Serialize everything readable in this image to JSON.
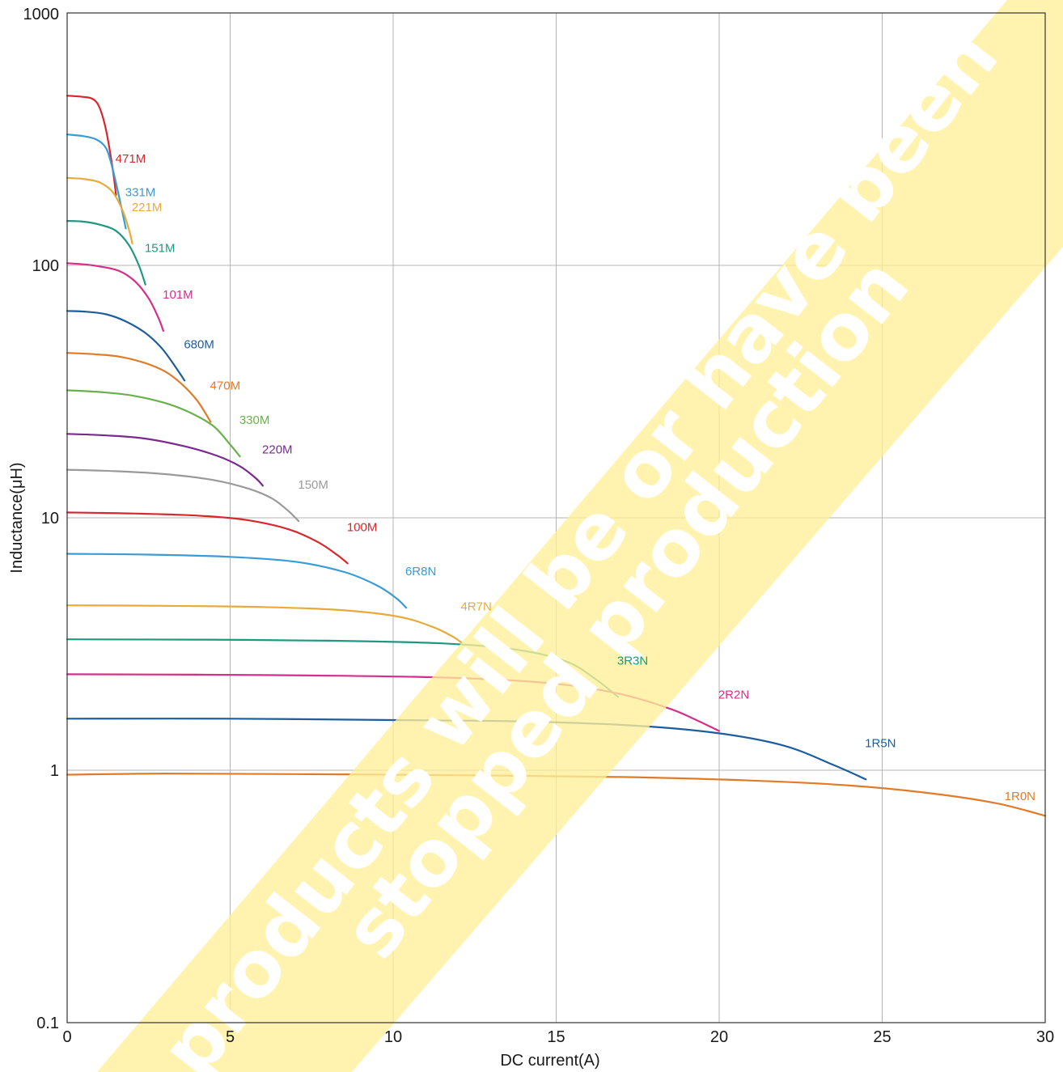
{
  "chart_data": {
    "type": "line",
    "title": "",
    "xlabel": "DC current(A)",
    "ylabel": "Inductance(μH)",
    "xlim": [
      0,
      30
    ],
    "ylim": [
      0.1,
      1000
    ],
    "yscale": "log",
    "grid": true,
    "x_ticks": [
      "0",
      "5",
      "10",
      "15",
      "20",
      "25",
      "30"
    ],
    "y_ticks": [
      "0.1",
      "1",
      "10",
      "100",
      "1000"
    ],
    "watermark": [
      "products will be or have been",
      "stopped production"
    ],
    "colors": {
      "watermark": "#fff099",
      "grid": "#b3b3b3",
      "axis": "#333333"
    },
    "series": [
      {
        "name": "471M",
        "color": "#d7272c",
        "x": [
          0,
          0.5,
          0.8,
          1.0,
          1.2,
          1.4,
          1.5
        ],
        "y": [
          470,
          465,
          455,
          420,
          340,
          240,
          190
        ]
      },
      {
        "name": "331M",
        "color": "#3a9bd5",
        "x": [
          0,
          0.5,
          0.9,
          1.2,
          1.4,
          1.6,
          1.8
        ],
        "y": [
          330,
          325,
          315,
          290,
          240,
          185,
          140
        ]
      },
      {
        "name": "221M",
        "color": "#e8ab3a",
        "x": [
          0,
          0.5,
          1.0,
          1.4,
          1.7,
          1.9,
          2.0
        ],
        "y": [
          222,
          220,
          213,
          195,
          165,
          138,
          122
        ]
      },
      {
        "name": "151M",
        "color": "#1f9882",
        "x": [
          0,
          0.5,
          1.0,
          1.5,
          1.9,
          2.2,
          2.4
        ],
        "y": [
          150,
          149,
          145,
          137,
          120,
          100,
          84
        ]
      },
      {
        "name": "101M",
        "color": "#d42f8c",
        "x": [
          0,
          0.5,
          1.0,
          1.6,
          2.1,
          2.5,
          2.8,
          2.95
        ],
        "y": [
          102,
          101,
          99,
          95,
          86,
          74,
          62,
          55
        ]
      },
      {
        "name": "680M",
        "color": "#1d5d9e",
        "x": [
          0,
          0.6,
          1.2,
          1.8,
          2.4,
          2.9,
          3.3,
          3.6
        ],
        "y": [
          66,
          65.5,
          64,
          60,
          54,
          47,
          40,
          35
        ]
      },
      {
        "name": "470M",
        "color": "#e07b2a",
        "x": [
          0,
          0.8,
          1.6,
          2.4,
          3.0,
          3.5,
          4.0,
          4.4
        ],
        "y": [
          45,
          44.5,
          43.5,
          41,
          38,
          34,
          29,
          24
        ]
      },
      {
        "name": "330M",
        "color": "#6ab04c",
        "x": [
          0,
          1.0,
          2.0,
          3.0,
          3.8,
          4.5,
          5.0,
          5.3
        ],
        "y": [
          32,
          31.5,
          30.5,
          28.5,
          26,
          23,
          19.5,
          17.5
        ]
      },
      {
        "name": "220M",
        "color": "#7a2a8f",
        "x": [
          0,
          1.2,
          2.4,
          3.6,
          4.6,
          5.3,
          5.8,
          6.0
        ],
        "y": [
          21.5,
          21.2,
          20.6,
          19.2,
          17.6,
          16.0,
          14.3,
          13.4
        ]
      },
      {
        "name": "150M",
        "color": "#9a9a9a",
        "x": [
          0,
          1.5,
          3.0,
          4.5,
          5.6,
          6.3,
          6.8,
          7.1
        ],
        "y": [
          15.5,
          15.3,
          14.9,
          14.1,
          13.0,
          11.9,
          10.6,
          9.7
        ]
      },
      {
        "name": "100M",
        "color": "#d7272c",
        "x": [
          0,
          2.0,
          4.0,
          5.5,
          6.8,
          7.7,
          8.3,
          8.6
        ],
        "y": [
          10.5,
          10.4,
          10.2,
          9.8,
          9.0,
          8.0,
          7.1,
          6.6
        ]
      },
      {
        "name": "6R8N",
        "color": "#3a9bd5",
        "x": [
          0,
          2.5,
          5.0,
          7.0,
          8.5,
          9.5,
          10.1,
          10.4
        ],
        "y": [
          7.2,
          7.15,
          7.0,
          6.7,
          6.1,
          5.4,
          4.8,
          4.4
        ]
      },
      {
        "name": "4R7N",
        "color": "#e8ab3a",
        "x": [
          0,
          3.0,
          6.0,
          8.5,
          10.2,
          11.2,
          11.8,
          12.1
        ],
        "y": [
          4.5,
          4.48,
          4.43,
          4.3,
          4.05,
          3.7,
          3.4,
          3.2
        ]
      },
      {
        "name": "3R3N",
        "color": "#1f9882",
        "x": [
          0,
          4.0,
          8.0,
          11.5,
          13.8,
          15.3,
          16.2,
          16.9
        ],
        "y": [
          3.3,
          3.29,
          3.26,
          3.18,
          3.0,
          2.7,
          2.3,
          1.95
        ]
      },
      {
        "name": "2R2N",
        "color": "#d42f8c",
        "x": [
          0,
          4.0,
          8.0,
          12.0,
          15.0,
          17.0,
          18.5,
          19.3,
          20.0
        ],
        "y": [
          2.4,
          2.39,
          2.37,
          2.32,
          2.2,
          2.0,
          1.75,
          1.58,
          1.43
        ]
      },
      {
        "name": "1R5N",
        "color": "#1d5d9e",
        "x": [
          0,
          5.0,
          10.0,
          14.0,
          17.5,
          20.0,
          22.0,
          23.5,
          24.5
        ],
        "y": [
          1.6,
          1.6,
          1.58,
          1.56,
          1.5,
          1.4,
          1.25,
          1.05,
          0.92
        ]
      },
      {
        "name": "1R0N",
        "color": "#e07b2a",
        "x": [
          0,
          3.0,
          7.0,
          12.0,
          17.0,
          21.0,
          24.0,
          26.5,
          28.5,
          30.0
        ],
        "y": [
          0.96,
          0.97,
          0.965,
          0.955,
          0.94,
          0.91,
          0.87,
          0.81,
          0.74,
          0.66
        ]
      }
    ]
  }
}
